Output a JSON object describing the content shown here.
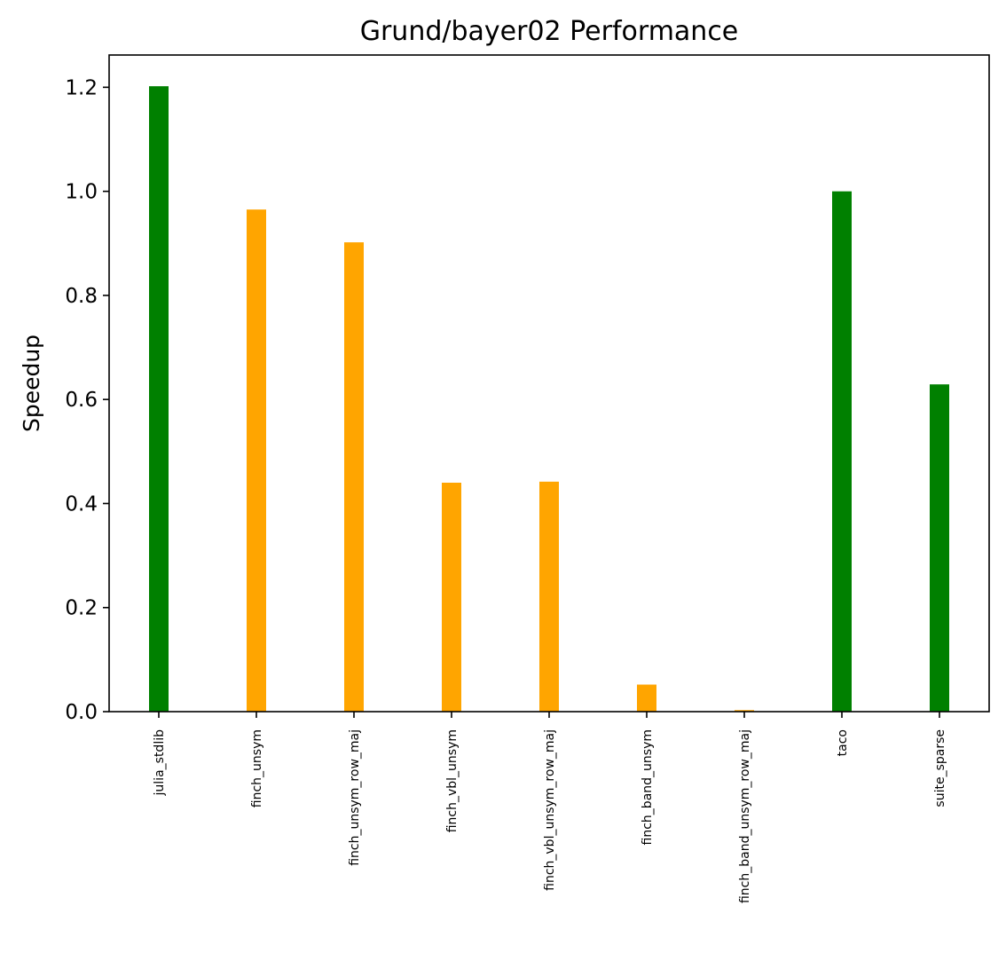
{
  "chart_data": {
    "type": "bar",
    "title": "Grund/bayer02 Performance",
    "xlabel": "",
    "ylabel": "Speedup",
    "ylim": [
      0,
      1.262
    ],
    "yticks": [
      "0.0",
      "0.2",
      "0.4",
      "0.6",
      "0.8",
      "1.0",
      "1.2"
    ],
    "grid": false,
    "categories": [
      "julia_stdlib",
      "finch_unsym",
      "finch_unsym_row_maj",
      "finch_vbl_unsym",
      "finch_vbl_unsym_row_maj",
      "finch_band_unsym",
      "finch_band_unsym_row_maj",
      "taco",
      "suite_sparse"
    ],
    "values": [
      1.202,
      0.965,
      0.902,
      0.44,
      0.442,
      0.052,
      0.003,
      1.0,
      0.629
    ],
    "colors": [
      "#008000",
      "#ffa500",
      "#ffa500",
      "#ffa500",
      "#ffa500",
      "#ffa500",
      "#ffa500",
      "#008000",
      "#008000"
    ]
  }
}
